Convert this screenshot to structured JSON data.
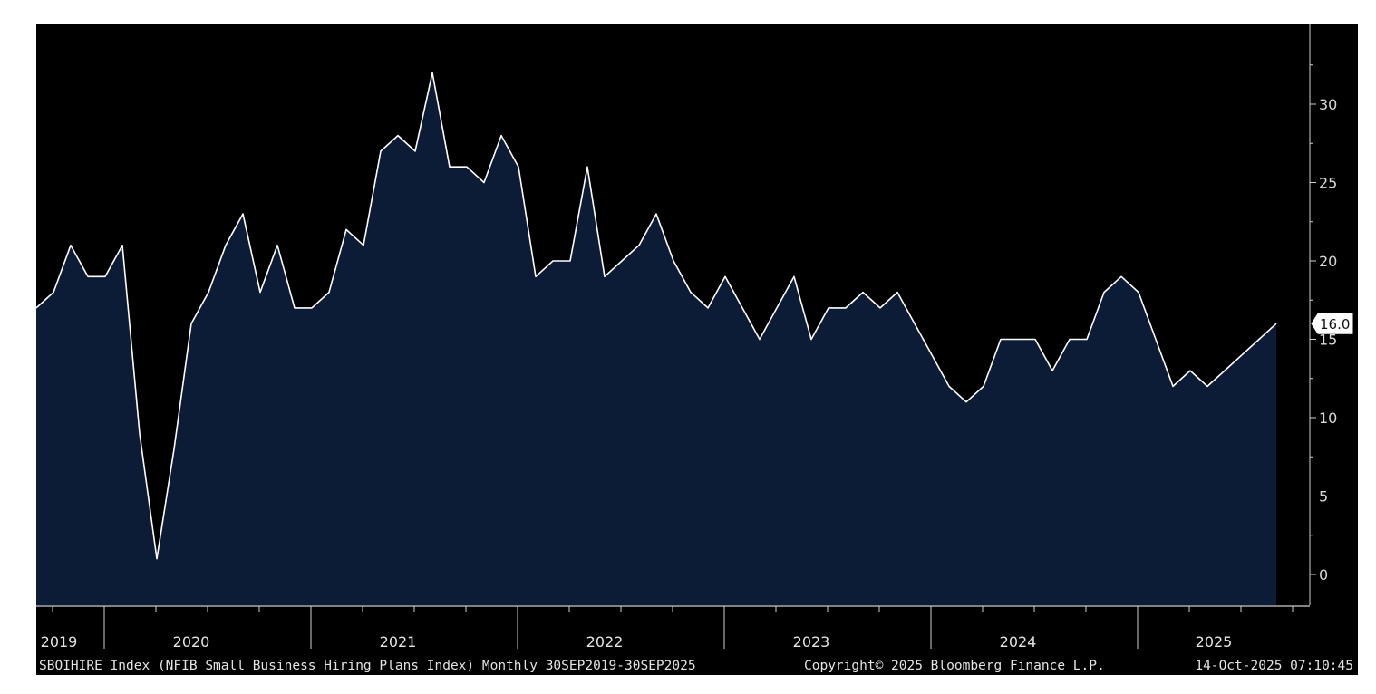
{
  "chart_data": {
    "type": "area",
    "title": "",
    "xlabel": "",
    "ylabel": "",
    "ylim": [
      -2,
      33
    ],
    "y_ticks": [
      "0",
      "5",
      "10",
      "15",
      "20",
      "25",
      "30"
    ],
    "y_tick_values": [
      0,
      5,
      10,
      15,
      20,
      25,
      30
    ],
    "grid": false,
    "axis_side": "right",
    "start_month": "2019-09",
    "end_month": "2025-09",
    "x_ticks": [
      "2019",
      "2020",
      "2021",
      "2022",
      "2023",
      "2024",
      "2025"
    ],
    "colors": {
      "background": "#000000",
      "fill": "#0d1c36",
      "line": "#ffffff",
      "axis": "#cfcfcf"
    },
    "series": [
      {
        "values": [
          17,
          18,
          21,
          19,
          19,
          21,
          9,
          1,
          8,
          16,
          18,
          21,
          23,
          18,
          21,
          17,
          17,
          18,
          22,
          21,
          27,
          28,
          27,
          32,
          26,
          26,
          25,
          28,
          26,
          19,
          20,
          20,
          26,
          19,
          20,
          21,
          23,
          20,
          18,
          17,
          19,
          17,
          15,
          17,
          19,
          15,
          17,
          17,
          18,
          17,
          18,
          16,
          14,
          12,
          11,
          12,
          15,
          15,
          15,
          13,
          15,
          15,
          18,
          19,
          18,
          15,
          12,
          13,
          12,
          13,
          14,
          15,
          16
        ]
      }
    ],
    "last_value_label": "16.0"
  },
  "footer": {
    "description": "SBOIHIRE Index (NFIB Small Business Hiring Plans Index) Monthly 30SEP2019-30SEP2025",
    "copyright": "Copyright© 2025 Bloomberg Finance L.P.",
    "timestamp": "14-Oct-2025 07:10:45"
  }
}
